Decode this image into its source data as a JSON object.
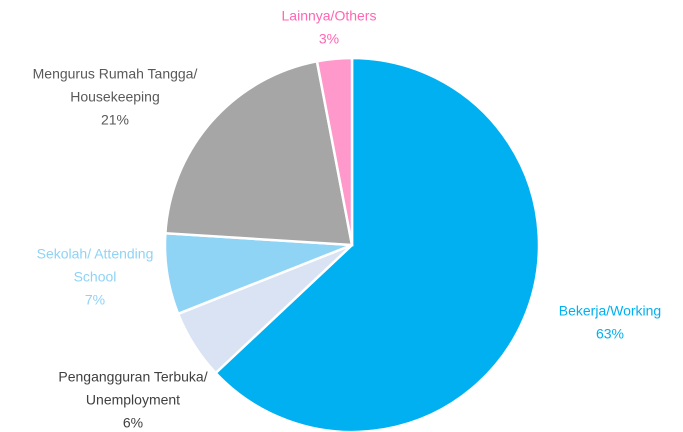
{
  "chart_data": {
    "type": "pie",
    "categories": [
      [
        "Bekerja/Working"
      ],
      [
        "Pengangguran Terbuka/",
        "Unemployment"
      ],
      [
        "Sekolah/ Attending",
        "School"
      ],
      [
        "Mengurus Rumah Tangga/",
        "Housekeeping"
      ],
      [
        "Lainnya/Others"
      ]
    ],
    "values": [
      63,
      6,
      7,
      21,
      3
    ],
    "value_labels": [
      "63%",
      "6%",
      "7%",
      "21%",
      "3%"
    ],
    "colors": [
      "#00b0f0",
      "#dae3f3",
      "#8fd3f5",
      "#a6a6a6",
      "#ff99cc"
    ],
    "label_colors": [
      "#00b0f0",
      "#404040",
      "#8fd3f5",
      "#595959",
      "#ff66b3"
    ]
  }
}
